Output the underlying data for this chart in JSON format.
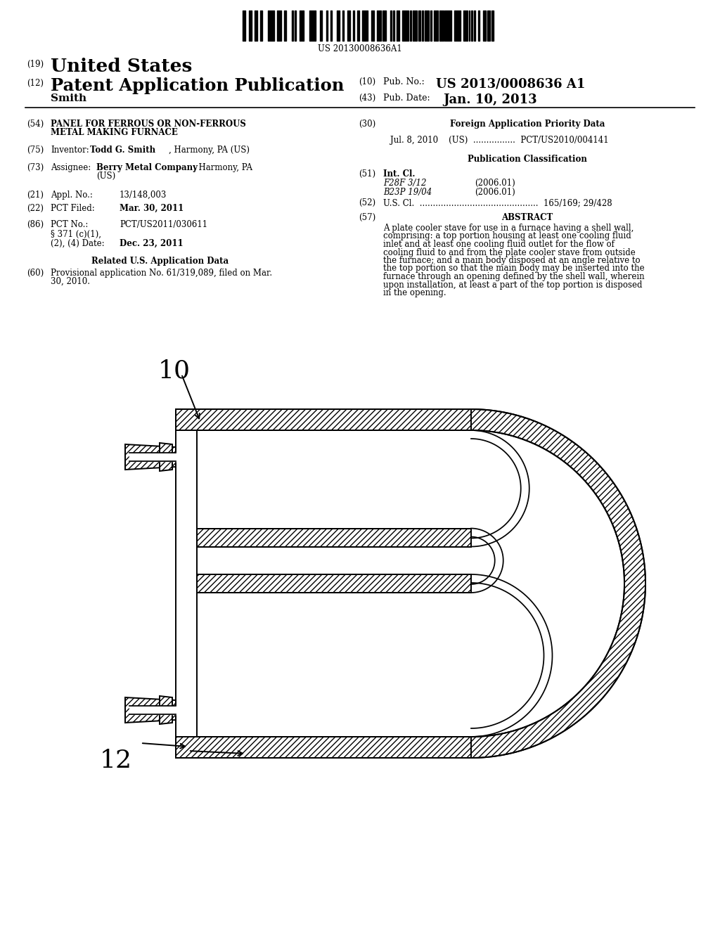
{
  "background_color": "#ffffff",
  "barcode_text": "US 20130008636A1",
  "field19": "(19)",
  "title19": "United States",
  "field12": "(12)",
  "title12": "Patent Application Publication",
  "field10": "(10)",
  "pub_no_label": "Pub. No.:",
  "pub_no": "US 2013/0008636 A1",
  "inventor_name": "Smith",
  "field43": "(43)",
  "pub_date_label": "Pub. Date:",
  "pub_date": "Jan. 10, 2013",
  "field54": "(54)",
  "title54a": "PANEL FOR FERROUS OR NON-FERROUS",
  "title54b": "METAL MAKING FURNACE",
  "field75": "(75)",
  "inventor75": "Inventor:",
  "inventor75_name": "Todd G. Smith",
  "inventor75_rest": ", Harmony, PA (US)",
  "field73": "(73)",
  "assignee_label": "Assignee:",
  "assignee_name": "Berry Metal Company",
  "assignee_rest": ", Harmony, PA",
  "assignee_rest2": "(US)",
  "field21": "(21)",
  "appl_label": "Appl. No.:",
  "appl_no": "13/148,003",
  "field22": "(22)",
  "pct_filed_label": "PCT Filed:",
  "pct_filed": "Mar. 30, 2011",
  "field86": "(86)",
  "pct_no_label": "PCT No.:",
  "pct_no": "PCT/US2011/030611",
  "section371": "§ 371 (c)(1),",
  "date_label": "(2), (4) Date:",
  "date_val": "Dec. 23, 2011",
  "related_title": "Related U.S. Application Data",
  "field60": "(60)",
  "prov_line1": "Provisional application No. 61/319,089, filed on Mar.",
  "prov_line2": "30, 2010.",
  "field30": "(30)",
  "foreign_title": "Foreign Application Priority Data",
  "foreign_data": "Jul. 8, 2010    (US)  ................  PCT/US2010/004141",
  "pub_class_title": "Publication Classification",
  "field51": "(51)",
  "int_cl": "Int. Cl.",
  "f28f": "F28F 3/12",
  "f28f_date": "(2006.01)",
  "b23p": "B23P 19/04",
  "b23p_date": "(2006.01)",
  "field52": "(52)",
  "us_cl": "U.S. Cl.  .............................................  165/169; 29/428",
  "field57": "(57)",
  "abstract_title": "ABSTRACT",
  "abstract_lines": [
    "A plate cooler stave for use in a furnace having a shell wall,",
    "comprising: a top portion housing at least one cooling fluid",
    "inlet and at least one cooling fluid outlet for the flow of",
    "cooling fluid to and from the plate cooler stave from outside",
    "the furnace; and a main body disposed at an angle relative to",
    "the top portion so that the main body may be inserted into the",
    "furnace through an opening defined by the shell wall, wherein",
    "upon installation, at least a part of the top portion is disposed",
    "in the opening."
  ],
  "label_10": "10",
  "label_12": "12"
}
